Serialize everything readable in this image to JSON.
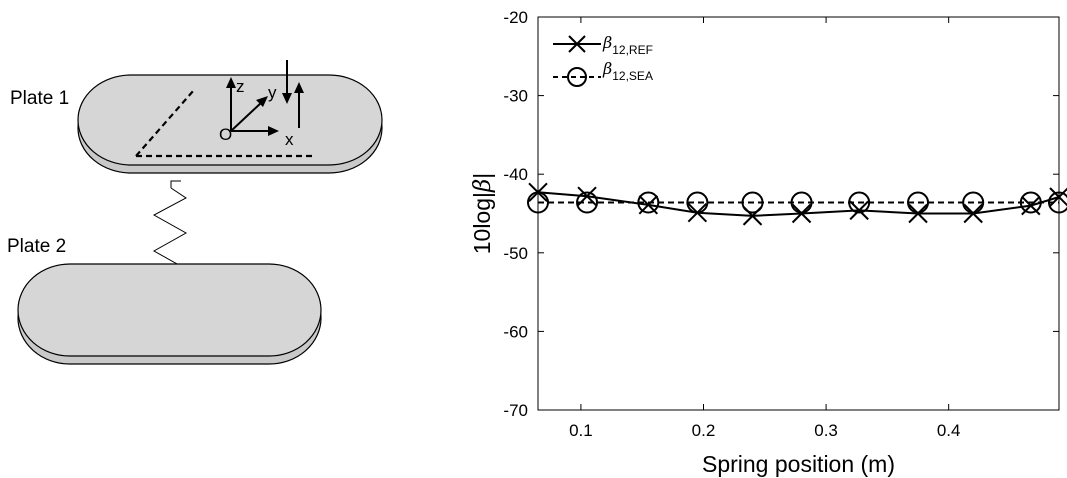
{
  "diagram": {
    "plate1_label": "Plate 1",
    "plate2_label": "Plate 2",
    "axis_z": "z",
    "axis_y": "y",
    "axis_x": "x",
    "axis_origin": "O"
  },
  "chart_data": {
    "type": "line",
    "xlabel": "Spring position (m)",
    "ylabel_main": "10log|",
    "ylabel_sym": "β",
    "ylabel_end": "|",
    "xlim": [
      0.065,
      0.49
    ],
    "ylim": [
      -70,
      -20
    ],
    "xticks": [
      0.1,
      0.2,
      0.3,
      0.4
    ],
    "yticks": [
      -70,
      -60,
      -50,
      -40,
      -30,
      -20
    ],
    "legend_position": "top-left",
    "series": [
      {
        "name": "β12,REF",
        "legend_symbol": "β",
        "legend_sub": "12,REF",
        "marker": "x",
        "line": "solid",
        "color": "#000000",
        "x": [
          0.065,
          0.105,
          0.155,
          0.195,
          0.24,
          0.28,
          0.327,
          0.375,
          0.42,
          0.467,
          0.49
        ],
        "y": [
          -42.3,
          -42.8,
          -43.9,
          -44.9,
          -45.3,
          -45.0,
          -44.6,
          -45.0,
          -45.0,
          -44.0,
          -42.9
        ]
      },
      {
        "name": "β12,SEA",
        "legend_symbol": "β",
        "legend_sub": "12,SEA",
        "marker": "o",
        "line": "dashed",
        "color": "#000000",
        "x": [
          0.065,
          0.105,
          0.155,
          0.195,
          0.24,
          0.28,
          0.327,
          0.375,
          0.42,
          0.467,
          0.49
        ],
        "y": [
          -43.6,
          -43.6,
          -43.6,
          -43.6,
          -43.6,
          -43.6,
          -43.6,
          -43.6,
          -43.6,
          -43.6,
          -43.6
        ]
      }
    ]
  }
}
